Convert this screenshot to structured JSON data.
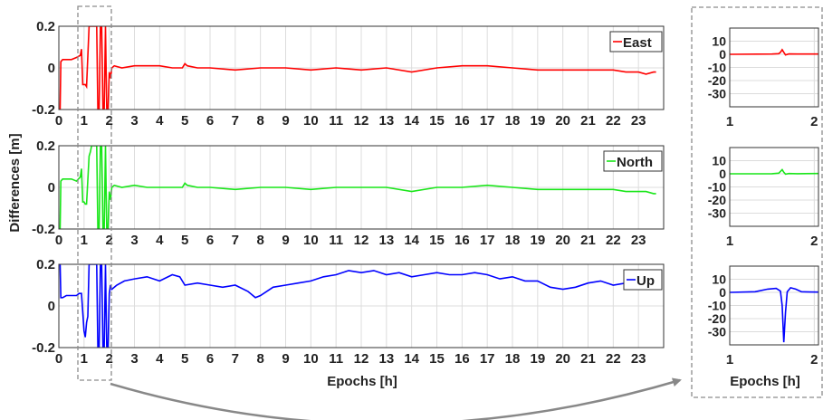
{
  "chart_data": {
    "type": "line",
    "ylabel": "Differences [m]",
    "xlabel": "Epochs [h]",
    "main_panels": [
      {
        "name": "East",
        "color": "#ff0000",
        "xlim": [
          0,
          24
        ],
        "ylim": [
          -0.2,
          0.2
        ],
        "yticks": [
          "-0.2",
          "0",
          "0.2"
        ],
        "x": [
          0.0,
          0.05,
          0.08,
          0.15,
          0.3,
          0.5,
          0.7,
          0.85,
          0.9,
          0.95,
          1.0,
          1.05,
          1.1,
          1.2,
          1.25,
          1.3,
          1.4,
          1.5,
          1.55,
          1.6,
          1.65,
          1.7,
          1.75,
          1.8,
          1.85,
          1.9,
          1.95,
          2.0,
          2.05,
          2.1,
          2.2,
          2.5,
          3.0,
          3.5,
          4.0,
          4.5,
          4.9,
          5.0,
          5.1,
          5.5,
          6.0,
          7.0,
          8.0,
          9.0,
          10.0,
          11.0,
          12.0,
          13.0,
          14.0,
          15.0,
          16.0,
          17.0,
          18.0,
          19.0,
          20.0,
          21.0,
          22.0,
          22.5,
          23.0,
          23.3,
          23.6,
          23.7
        ],
        "y": [
          -0.2,
          -0.2,
          0.03,
          0.04,
          0.04,
          0.04,
          0.05,
          0.06,
          0.09,
          -0.08,
          -0.08,
          -0.08,
          -0.09,
          0.2,
          0.2,
          0.2,
          0.2,
          0.2,
          -0.2,
          -0.2,
          0.2,
          0.2,
          -0.2,
          -0.2,
          0.2,
          -0.2,
          -0.2,
          -0.02,
          -0.05,
          0.0,
          0.01,
          0.0,
          0.01,
          0.01,
          0.01,
          0.0,
          0.0,
          0.02,
          0.01,
          0.0,
          0.0,
          -0.01,
          0.0,
          0.0,
          -0.01,
          0.0,
          -0.01,
          0.0,
          -0.02,
          0.0,
          0.01,
          0.01,
          0.0,
          -0.01,
          -0.01,
          -0.01,
          -0.01,
          -0.02,
          -0.02,
          -0.03,
          -0.02,
          -0.02
        ],
        "legend": "East"
      },
      {
        "name": "North",
        "color": "#19e619",
        "xlim": [
          0,
          24
        ],
        "ylim": [
          -0.2,
          0.2
        ],
        "yticks": [
          "-0.2",
          "0",
          "0.2"
        ],
        "x": [
          0.0,
          0.05,
          0.08,
          0.15,
          0.3,
          0.5,
          0.7,
          0.85,
          0.9,
          0.95,
          1.0,
          1.05,
          1.1,
          1.2,
          1.25,
          1.3,
          1.4,
          1.5,
          1.55,
          1.6,
          1.65,
          1.7,
          1.75,
          1.8,
          1.85,
          1.9,
          1.95,
          2.0,
          2.05,
          2.1,
          2.2,
          2.5,
          3.0,
          3.5,
          4.0,
          4.5,
          4.9,
          5.0,
          5.1,
          5.5,
          6.0,
          7.0,
          8.0,
          9.0,
          10.0,
          11.0,
          12.0,
          13.0,
          14.0,
          15.0,
          16.0,
          17.0,
          18.0,
          19.0,
          20.0,
          21.0,
          22.0,
          22.5,
          23.0,
          23.3,
          23.6,
          23.7
        ],
        "y": [
          -0.2,
          -0.2,
          0.03,
          0.04,
          0.04,
          0.04,
          0.03,
          0.05,
          0.09,
          -0.07,
          -0.07,
          -0.08,
          -0.08,
          0.15,
          0.17,
          0.2,
          0.2,
          0.2,
          -0.2,
          -0.2,
          0.2,
          0.2,
          -0.2,
          -0.2,
          0.2,
          -0.2,
          -0.2,
          -0.02,
          -0.06,
          0.0,
          0.01,
          0.0,
          0.01,
          0.0,
          0.0,
          0.0,
          0.0,
          0.02,
          0.01,
          0.0,
          0.0,
          -0.01,
          0.0,
          0.0,
          -0.01,
          0.0,
          0.0,
          0.0,
          -0.02,
          0.0,
          0.0,
          0.01,
          0.0,
          -0.01,
          -0.01,
          -0.01,
          -0.01,
          -0.02,
          -0.02,
          -0.02,
          -0.03,
          -0.03
        ],
        "legend": "North"
      },
      {
        "name": "Up",
        "color": "#0000ff",
        "xlim": [
          0,
          24
        ],
        "ylim": [
          -0.2,
          0.2
        ],
        "yticks": [
          "-0.2",
          "0",
          "0.2"
        ],
        "x": [
          0.0,
          0.05,
          0.08,
          0.15,
          0.3,
          0.5,
          0.7,
          0.8,
          0.9,
          1.0,
          1.05,
          1.1,
          1.15,
          1.2,
          1.25,
          1.3,
          1.4,
          1.5,
          1.55,
          1.6,
          1.65,
          1.7,
          1.75,
          1.8,
          1.85,
          1.9,
          1.95,
          2.0,
          2.05,
          2.1,
          2.3,
          2.6,
          3.0,
          3.5,
          4.0,
          4.5,
          4.8,
          5.0,
          5.5,
          6.0,
          6.5,
          7.0,
          7.5,
          7.8,
          8.0,
          8.5,
          9.0,
          9.5,
          10.0,
          10.5,
          11.0,
          11.5,
          12.0,
          12.5,
          13.0,
          13.5,
          14.0,
          14.5,
          15.0,
          15.5,
          16.0,
          16.5,
          17.0,
          17.5,
          18.0,
          18.5,
          19.0,
          19.5,
          20.0,
          20.5,
          21.0,
          21.5,
          22.0,
          22.5,
          23.0,
          23.5,
          23.7
        ],
        "y": [
          0.2,
          0.2,
          0.04,
          0.04,
          0.05,
          0.05,
          0.05,
          0.06,
          0.06,
          -0.12,
          -0.15,
          -0.08,
          -0.05,
          0.2,
          0.2,
          0.2,
          0.2,
          0.2,
          -0.2,
          -0.2,
          0.2,
          0.2,
          -0.2,
          -0.2,
          0.2,
          -0.2,
          -0.2,
          0.06,
          0.1,
          0.08,
          0.1,
          0.12,
          0.13,
          0.14,
          0.12,
          0.15,
          0.14,
          0.1,
          0.11,
          0.1,
          0.09,
          0.1,
          0.07,
          0.04,
          0.05,
          0.09,
          0.1,
          0.11,
          0.12,
          0.14,
          0.15,
          0.17,
          0.16,
          0.17,
          0.15,
          0.16,
          0.14,
          0.15,
          0.16,
          0.15,
          0.15,
          0.16,
          0.15,
          0.13,
          0.14,
          0.12,
          0.12,
          0.09,
          0.08,
          0.09,
          0.11,
          0.12,
          0.1,
          0.11,
          0.1,
          0.09,
          0.1
        ],
        "legend": "Up"
      }
    ],
    "xticks": [
      "0",
      "1",
      "2",
      "3",
      "4",
      "5",
      "6",
      "7",
      "8",
      "9",
      "10",
      "11",
      "12",
      "13",
      "14",
      "15",
      "16",
      "17",
      "18",
      "19",
      "20",
      "21",
      "22",
      "23"
    ],
    "zoom_panels": [
      {
        "name": "East",
        "color": "#ff0000",
        "xlim": [
          1,
          2.05
        ],
        "ylim": [
          -40,
          20
        ],
        "yticks": [
          "10",
          "0",
          "-10",
          "-20",
          "-30"
        ],
        "xticks": [
          "1",
          "2"
        ],
        "x": [
          1.0,
          1.5,
          1.58,
          1.6,
          1.62,
          1.64,
          1.66,
          1.7,
          1.8,
          2.05
        ],
        "y": [
          0,
          0.2,
          0.5,
          1.5,
          3.5,
          1.5,
          -0.5,
          0.3,
          0.2,
          0.2
        ]
      },
      {
        "name": "North",
        "color": "#19e619",
        "xlim": [
          1,
          2.05
        ],
        "ylim": [
          -40,
          20
        ],
        "yticks": [
          "10",
          "0",
          "-10",
          "-20",
          "-30"
        ],
        "xticks": [
          "1",
          "2"
        ],
        "x": [
          1.0,
          1.5,
          1.58,
          1.6,
          1.62,
          1.64,
          1.66,
          1.7,
          1.8,
          2.05
        ],
        "y": [
          0,
          0.1,
          0.5,
          1.8,
          3.2,
          1.2,
          -0.3,
          0.2,
          0.1,
          0.2
        ]
      },
      {
        "name": "Up",
        "color": "#0000ff",
        "xlim": [
          1,
          2.05
        ],
        "ylim": [
          -40,
          20
        ],
        "yticks": [
          "10",
          "0",
          "-10",
          "-20",
          "-30"
        ],
        "xticks": [
          "1",
          "2"
        ],
        "x": [
          1.0,
          1.3,
          1.45,
          1.55,
          1.6,
          1.62,
          1.64,
          1.66,
          1.68,
          1.72,
          1.78,
          1.85,
          1.95,
          2.05
        ],
        "y": [
          0,
          0.5,
          2.5,
          3.0,
          1.0,
          -10,
          -38,
          -15,
          0.5,
          3.5,
          2.5,
          0.5,
          0.3,
          0.2
        ]
      }
    ],
    "zoom_xlabel": "Epochs [h]",
    "grid": true
  }
}
